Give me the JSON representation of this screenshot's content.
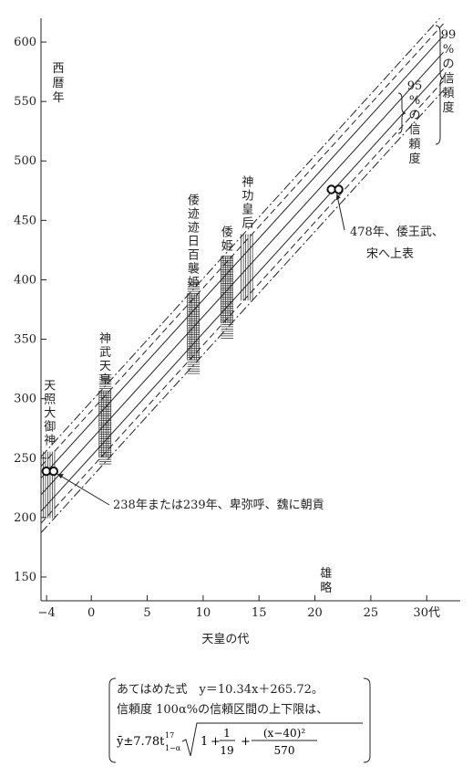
{
  "chart_data": {
    "type": "line",
    "xlabel": "天皇の代",
    "ylabel": "西暦年",
    "xlim": [
      -4.5,
      33
    ],
    "ylim": [
      130,
      620
    ],
    "xticks": [
      -4,
      0,
      5,
      10,
      15,
      20,
      25,
      30
    ],
    "xtick_labels": [
      "−4",
      "0",
      "5",
      "10",
      "15",
      "20",
      "25",
      "30代"
    ],
    "yticks": [
      150,
      200,
      250,
      300,
      350,
      400,
      450,
      500,
      550,
      600
    ],
    "ytick_labels": [
      "150",
      "200",
      "250",
      "300",
      "350",
      "400",
      "450",
      "500",
      "550",
      "600"
    ],
    "fit": {
      "slope": 10.34,
      "intercept": 265.72
    },
    "bands": [
      {
        "label": "99%の信頼度",
        "style": "dash-dot",
        "half_width": 32
      },
      {
        "label": "95%の信頼度",
        "style": "dashed",
        "half_width": 24
      }
    ],
    "inner_lines": {
      "style": "solid",
      "half_width": 14
    },
    "rulers": [
      {
        "label": "天照大御神",
        "x0": -4.3,
        "x1": -3.1,
        "hatch": "vertical",
        "cross_y": [
          200,
          250
        ]
      },
      {
        "label": "神武天皇",
        "x0": 0.7,
        "x1": 1.8,
        "hatch": "cross",
        "cross_y": [
          245,
          320
        ]
      },
      {
        "label": "倭迹迹日百襲姫",
        "x0": 8.6,
        "x1": 9.7,
        "hatch": "cross",
        "cross_y": [
          320,
          398
        ]
      },
      {
        "label": "倭姫",
        "x0": 11.6,
        "x1": 12.7,
        "hatch": "cross",
        "cross_y": [
          350,
          420
        ]
      },
      {
        "label": "神功皇后",
        "x0": 13.4,
        "x1": 14.6,
        "hatch": "vertical",
        "cross_y": [
          380,
          445
        ]
      }
    ],
    "markers": [
      {
        "x": -3.7,
        "y": 239,
        "label": "238年または239年、卑弥呼、魏に朝貢"
      },
      {
        "x": 21.8,
        "y": 476,
        "label": "478年、倭王武、宋へ上表"
      }
    ],
    "bottom_label": "雄略",
    "bracket_labels": {
      "p99": "99%の信頼度",
      "p95": "95%の信頼度"
    }
  },
  "formula": {
    "line1": "あてはめた式　y＝10.34x＋265.72。",
    "line2": "信頼度 100α%の信頼区間の上下限は、",
    "line3_prefix": "ȳ±7.78t",
    "line3_sup": "17",
    "line3_sub": "1−α",
    "frac1_num": "1",
    "frac1_den": "19",
    "frac2_num": "(x−40)²",
    "frac2_den": "570",
    "one": "1"
  }
}
